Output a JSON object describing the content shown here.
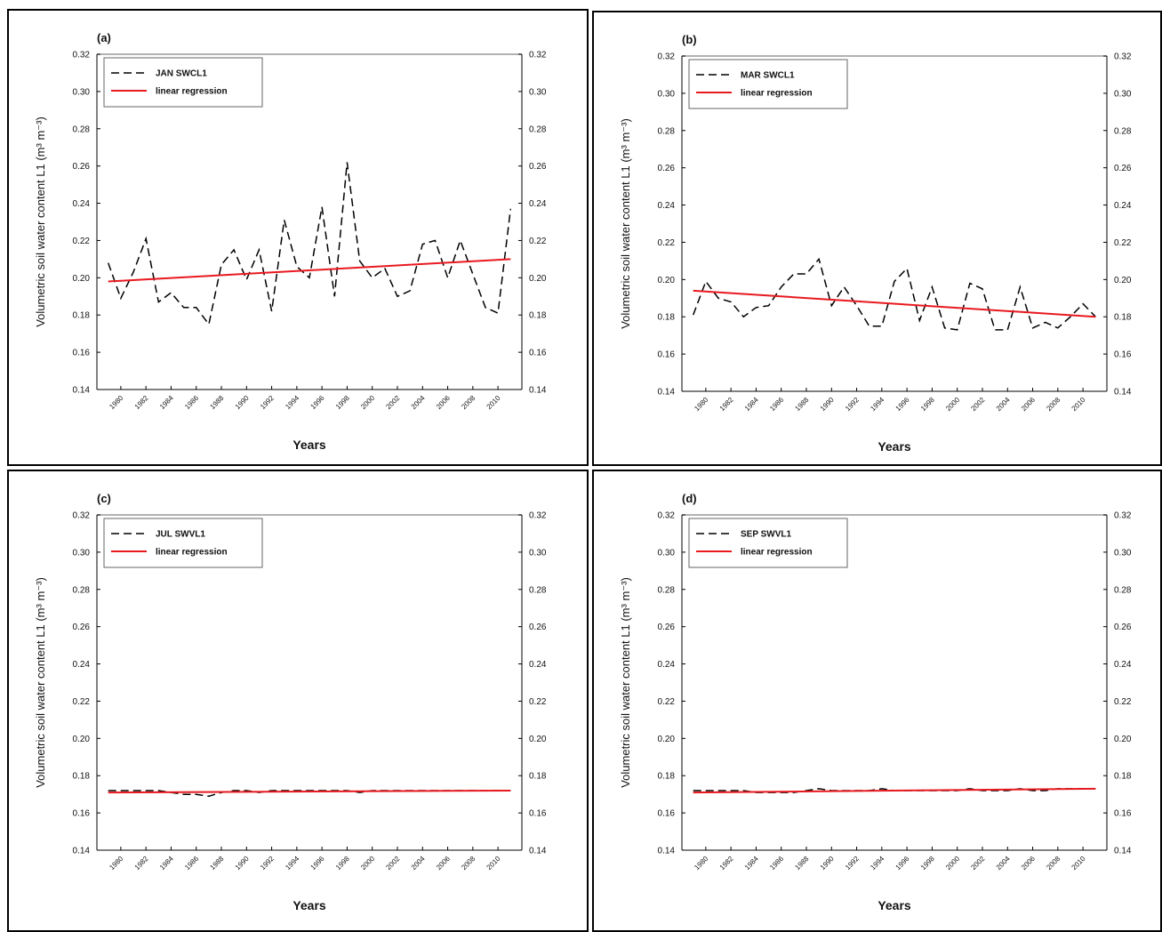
{
  "chart_data": [
    {
      "type": "line",
      "title": "(a)",
      "x_label": "Years",
      "y_label": "Volumetric soil water content L1 (m³ m⁻³)",
      "x": [
        1979,
        1980,
        1981,
        1982,
        1983,
        1984,
        1985,
        1986,
        1987,
        1988,
        1989,
        1990,
        1991,
        1992,
        1993,
        1994,
        1995,
        1996,
        1997,
        1998,
        1999,
        2000,
        2001,
        2002,
        2003,
        2004,
        2005,
        2006,
        2007,
        2008,
        2009,
        2010,
        2011
      ],
      "series": [
        {
          "name": "JAN SWCL1",
          "color": "#000000",
          "dash": true,
          "values": [
            0.208,
            0.189,
            0.203,
            0.221,
            0.187,
            0.192,
            0.184,
            0.184,
            0.175,
            0.207,
            0.215,
            0.199,
            0.215,
            0.182,
            0.231,
            0.206,
            0.2,
            0.238,
            0.19,
            0.262,
            0.209,
            0.2,
            0.205,
            0.19,
            0.193,
            0.218,
            0.22,
            0.2,
            0.22,
            0.202,
            0.184,
            0.181,
            0.237
          ]
        },
        {
          "name": "linear regression",
          "color": "#e8191f",
          "x": [
            1979,
            2011
          ],
          "values": [
            0.198,
            0.21
          ]
        }
      ],
      "xlim": [
        1978.1,
        2011.9
      ],
      "xticks": [
        1980,
        1982,
        1984,
        1986,
        1988,
        1990,
        1992,
        1994,
        1996,
        1998,
        2000,
        2002,
        2004,
        2006,
        2008,
        2010
      ],
      "ylim": [
        0.14,
        0.32
      ],
      "yticks": [
        0.14,
        0.16,
        0.18,
        {
          "value": 0.2,
          "label": "0.20"
        },
        0.22,
        0.24,
        0.26,
        0.28,
        {
          "value": 0.3,
          "label": "0.30"
        },
        0.32
      ],
      "y2lim": [
        0.14,
        0.32
      ],
      "y2ticks": [
        0.14,
        0.16,
        0.18,
        {
          "value": 0.2,
          "label": "0.20"
        },
        0.22,
        0.24,
        0.26,
        0.28,
        {
          "value": 0.3,
          "label": "0.30"
        },
        0.32
      ],
      "legend": "upper-left"
    },
    {
      "type": "line",
      "title": "(b)",
      "x_label": "Years",
      "y_label": "Volumetric soil water content L1 (m³ m⁻³)",
      "x": [
        1979,
        1980,
        1981,
        1982,
        1983,
        1984,
        1985,
        1986,
        1987,
        1988,
        1989,
        1990,
        1991,
        1992,
        1993,
        1994,
        1995,
        1996,
        1997,
        1998,
        1999,
        2000,
        2001,
        2002,
        2003,
        2004,
        2005,
        2006,
        2007,
        2008,
        2009,
        2010,
        2011
      ],
      "series": [
        {
          "name": "MAR SWCL1",
          "color": "#000000",
          "dash": true,
          "values": [
            0.181,
            0.199,
            0.19,
            0.188,
            0.18,
            0.185,
            0.186,
            0.196,
            0.203,
            0.203,
            0.211,
            0.186,
            0.196,
            0.186,
            0.175,
            0.175,
            0.199,
            0.206,
            0.178,
            0.196,
            0.174,
            0.173,
            0.198,
            0.195,
            0.173,
            0.173,
            0.196,
            0.174,
            0.177,
            0.174,
            0.18,
            0.187,
            0.18
          ]
        },
        {
          "name": "linear regression",
          "color": "#e8191f",
          "x": [
            1979,
            2011
          ],
          "values": [
            0.194,
            0.18
          ]
        }
      ],
      "xlim": [
        1978.1,
        2011.9
      ],
      "xticks": [
        1980,
        1982,
        1984,
        1986,
        1988,
        1990,
        1992,
        1994,
        1996,
        1998,
        2000,
        2002,
        2004,
        2006,
        2008,
        2010
      ],
      "ylim": [
        0.14,
        0.32
      ],
      "yticks": [
        0.14,
        0.16,
        0.18,
        {
          "value": 0.2,
          "label": "0.20"
        },
        0.22,
        0.24,
        0.26,
        0.28,
        {
          "value": 0.3,
          "label": "0.30"
        },
        0.32
      ],
      "y2lim": [
        0.14,
        0.32
      ],
      "y2ticks": [
        0.14,
        0.16,
        0.18,
        {
          "value": 0.2,
          "label": "0.20"
        },
        0.22,
        0.24,
        0.26,
        0.28,
        {
          "value": 0.3,
          "label": "0.30"
        },
        0.32
      ],
      "legend": "upper-left"
    },
    {
      "type": "line",
      "title": "(c)",
      "x_label": "Years",
      "y_label": "Volumetric soil water content L1 (m³ m⁻³)",
      "x": [
        1979,
        1980,
        1981,
        1982,
        1983,
        1984,
        1985,
        1986,
        1987,
        1988,
        1989,
        1990,
        1991,
        1992,
        1993,
        1994,
        1995,
        1996,
        1997,
        1998,
        1999,
        2000,
        2001,
        2002,
        2003,
        2004,
        2005,
        2006,
        2007,
        2008,
        2009,
        2010,
        2011
      ],
      "series": [
        {
          "name": "JUL SWVL1",
          "color": "#000000",
          "dash": true,
          "values": [
            0.172,
            0.172,
            0.172,
            0.172,
            0.172,
            0.171,
            0.17,
            0.17,
            0.169,
            0.171,
            0.172,
            0.172,
            0.171,
            0.172,
            0.172,
            0.172,
            0.172,
            0.172,
            0.172,
            0.172,
            0.171,
            0.172,
            0.172,
            0.172,
            0.172,
            0.172,
            0.172,
            0.172,
            0.172,
            0.172,
            0.172,
            0.172,
            0.172
          ]
        },
        {
          "name": "linear regression",
          "color": "#e8191f",
          "x": [
            1979,
            2011
          ],
          "values": [
            0.171,
            0.172
          ]
        }
      ],
      "xlim": [
        1978.1,
        2011.9
      ],
      "xticks": [
        1980,
        1982,
        1984,
        1986,
        1988,
        1990,
        1992,
        1994,
        1996,
        1998,
        2000,
        2002,
        2004,
        2006,
        2008,
        2010
      ],
      "ylim": [
        0.14,
        0.32
      ],
      "yticks": [
        0.14,
        0.16,
        0.18,
        {
          "value": 0.2,
          "label": "0.20"
        },
        0.22,
        0.24,
        0.26,
        0.28,
        {
          "value": 0.3,
          "label": "0.30"
        },
        0.32
      ],
      "y2lim": [
        0.14,
        0.32
      ],
      "y2ticks": [
        0.14,
        0.16,
        0.18,
        {
          "value": 0.2,
          "label": "0.20"
        },
        0.22,
        0.24,
        0.26,
        0.28,
        {
          "value": 0.3,
          "label": "0.30"
        },
        0.32
      ],
      "legend": "upper-left"
    },
    {
      "type": "line",
      "title": "(d)",
      "x_label": "Years",
      "y_label": "Volumetric soil water content L1 (m³ m⁻³)",
      "x": [
        1979,
        1980,
        1981,
        1982,
        1983,
        1984,
        1985,
        1986,
        1987,
        1988,
        1989,
        1990,
        1991,
        1992,
        1993,
        1994,
        1995,
        1996,
        1997,
        1998,
        1999,
        2000,
        2001,
        2002,
        2003,
        2004,
        2005,
        2006,
        2007,
        2008,
        2009,
        2010,
        2011
      ],
      "series": [
        {
          "name": "SEP SWVL1",
          "color": "#000000",
          "dash": true,
          "values": [
            0.172,
            0.172,
            0.172,
            0.172,
            0.172,
            0.171,
            0.171,
            0.171,
            0.171,
            0.172,
            0.173,
            0.172,
            0.172,
            0.172,
            0.172,
            0.173,
            0.172,
            0.172,
            0.172,
            0.172,
            0.172,
            0.172,
            0.173,
            0.172,
            0.172,
            0.172,
            0.173,
            0.172,
            0.172,
            0.173,
            0.173,
            0.173,
            0.173
          ]
        },
        {
          "name": "linear regression",
          "color": "#e8191f",
          "x": [
            1979,
            2011
          ],
          "values": [
            0.171,
            0.173
          ]
        }
      ],
      "xlim": [
        1978.1,
        2011.9
      ],
      "xticks": [
        1980,
        1982,
        1984,
        1986,
        1988,
        1990,
        1992,
        1994,
        1996,
        1998,
        2000,
        2002,
        2004,
        2006,
        2008,
        2010
      ],
      "ylim": [
        0.14,
        0.32
      ],
      "yticks": [
        0.14,
        0.16,
        0.18,
        {
          "value": 0.2,
          "label": "0.20"
        },
        0.22,
        0.24,
        0.26,
        0.28,
        {
          "value": 0.3,
          "label": "0.30"
        },
        0.32
      ],
      "y2lim": [
        0.14,
        0.32
      ],
      "y2ticks": [
        0.14,
        0.16,
        0.18,
        {
          "value": 0.2,
          "label": "0.20"
        },
        0.22,
        0.24,
        0.26,
        0.28,
        {
          "value": 0.3,
          "label": "0.30"
        },
        0.32
      ],
      "legend": "upper-left"
    }
  ]
}
